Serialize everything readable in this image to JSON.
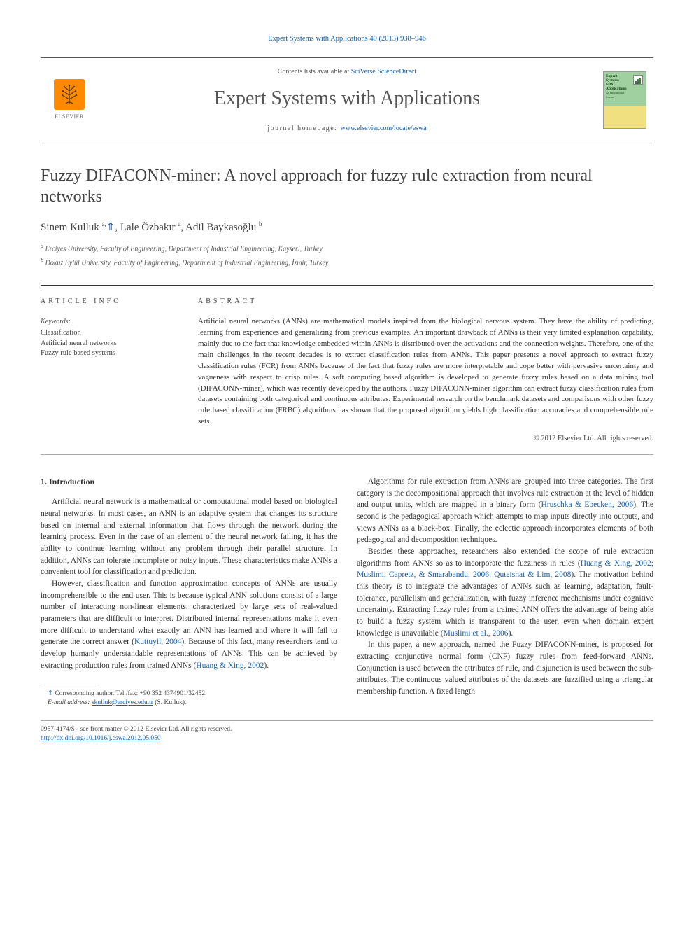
{
  "journal_ref": "Expert Systems with Applications 40 (2013) 938–946",
  "masthead": {
    "contents_prefix": "Contents lists available at ",
    "contents_link": "SciVerse ScienceDirect",
    "journal_name": "Expert Systems with Applications",
    "homepage_prefix": "journal homepage: ",
    "homepage_link": "www.elsevier.com/locate/eswa",
    "publisher": "ELSEVIER",
    "cover_title": "Expert\nSystems\nwith\nApplications",
    "cover_sub": "An International\nJournal"
  },
  "article": {
    "title": "Fuzzy DIFACONN-miner: A novel approach for fuzzy rule extraction from neural networks",
    "authors_html": "Sinem Kulluk <sup>a,</sup><span class='star'>⇑</span>, Lale Özbakır <sup>a</sup>, Adil Baykasoğlu <sup>b</sup>",
    "affiliations": [
      "a Erciyes University, Faculty of Engineering, Department of Industrial Engineering, Kayseri, Turkey",
      "b Dokuz Eylül University, Faculty of Engineering, Department of Industrial Engineering, İzmir, Turkey"
    ]
  },
  "info": {
    "heading": "ARTICLE INFO",
    "keywords_label": "Keywords:",
    "keywords": [
      "Classification",
      "Artificial neural networks",
      "Fuzzy rule based systems"
    ]
  },
  "abstract": {
    "heading": "ABSTRACT",
    "text": "Artificial neural networks (ANNs) are mathematical models inspired from the biological nervous system. They have the ability of predicting, learning from experiences and generalizing from previous examples. An important drawback of ANNs is their very limited explanation capability, mainly due to the fact that knowledge embedded within ANNs is distributed over the activations and the connection weights. Therefore, one of the main challenges in the recent decades is to extract classification rules from ANNs. This paper presents a novel approach to extract fuzzy classification rules (FCR) from ANNs because of the fact that fuzzy rules are more interpretable and cope better with pervasive uncertainty and vagueness with respect to crisp rules. A soft computing based algorithm is developed to generate fuzzy rules based on a data mining tool (DIFACONN-miner), which was recently developed by the authors. Fuzzy DIFACONN-miner algorithm can extract fuzzy classification rules from datasets containing both categorical and continuous attributes. Experimental research on the benchmark datasets and comparisons with other fuzzy rule based classification (FRBC) algorithms has shown that the proposed algorithm yields high classification accuracies and comprehensible rule sets.",
    "copyright": "© 2012 Elsevier Ltd. All rights reserved."
  },
  "body": {
    "section_heading": "1. Introduction",
    "left_paras": [
      "Artificial neural network is a mathematical or computational model based on biological neural networks. In most cases, an ANN is an adaptive system that changes its structure based on internal and external information that flows through the network during the learning process. Even in the case of an element of the neural network failing, it has the ability to continue learning without any problem through their parallel structure. In addition, ANNs can tolerate incomplete or noisy inputs. These characteristics make ANNs a convenient tool for classification and prediction.",
      "However, classification and function approximation concepts of ANNs are usually incomprehensible to the end user. This is because typical ANN solutions consist of a large number of interacting non-linear elements, characterized by large sets of real-valued parameters that are difficult to interpret. Distributed internal representations make it even more difficult to understand what exactly an ANN has learned and where it will fail to generate the correct answer (<span class='cite'>Kuttuyil, 2004</span>). Because of this fact, many researchers tend to develop humanly understandable representations of ANNs. This can be achieved by extracting production rules from trained ANNs (<span class='cite'>Huang & Xing, 2002</span>)."
    ],
    "right_paras": [
      "Algorithms for rule extraction from ANNs are grouped into three categories. The first category is the decompositional approach that involves rule extraction at the level of hidden and output units, which are mapped in a binary form (<span class='cite'>Hruschka & Ebecken, 2006</span>). The second is the pedagogical approach which attempts to map inputs directly into outputs, and views ANNs as a black-box. Finally, the eclectic approach incorporates elements of both pedagogical and decomposition techniques.",
      "Besides these approaches, researchers also extended the scope of rule extraction algorithms from ANNs so as to incorporate the fuzziness in rules (<span class='cite'>Huang & Xing, 2002; Muslimi, Capretz, & Smarabandu, 2006; Quteishat & Lim, 2008</span>). The motivation behind this theory is to integrate the advantages of ANNs such as learning, adaptation, fault-tolerance, parallelism and generalization, with fuzzy inference mechanisms under cognitive uncertainty. Extracting fuzzy rules from a trained ANN offers the advantage of being able to build a fuzzy system which is transparent to the user, even when domain expert knowledge is unavailable (<span class='cite'>Muslimi et al., 2006</span>).",
      "In this paper, a new approach, named the Fuzzy DIFACONN-miner, is proposed for extracting conjunctive normal form (CNF) fuzzy rules from feed-forward ANNs. Conjunction is used between the attributes of rule, and disjunction is used between the sub-attributes. The continuous valued attributes of the datasets are fuzzified using a triangular membership function. A fixed length"
    ]
  },
  "footnote": {
    "corr": "⇑ Corresponding author. Tel./fax: +90 352 4374901/32452.",
    "email_label": "E-mail address: ",
    "email": "skulluk@erciyes.edu.tr",
    "email_who": " (S. Kulluk)."
  },
  "footer": {
    "line1": "0957-4174/$ - see front matter © 2012 Elsevier Ltd. All rights reserved.",
    "doi": "http://dx.doi.org/10.1016/j.eswa.2012.05.050"
  },
  "colors": {
    "link": "#1560b3",
    "text": "#333333",
    "rule": "#aaaaaa",
    "elsevier_orange": "#ff8a00"
  },
  "typography": {
    "title_fontsize": 24,
    "journal_name_fontsize": 28,
    "body_fontsize": 11.5,
    "abstract_fontsize": 11,
    "authors_fontsize": 15
  }
}
